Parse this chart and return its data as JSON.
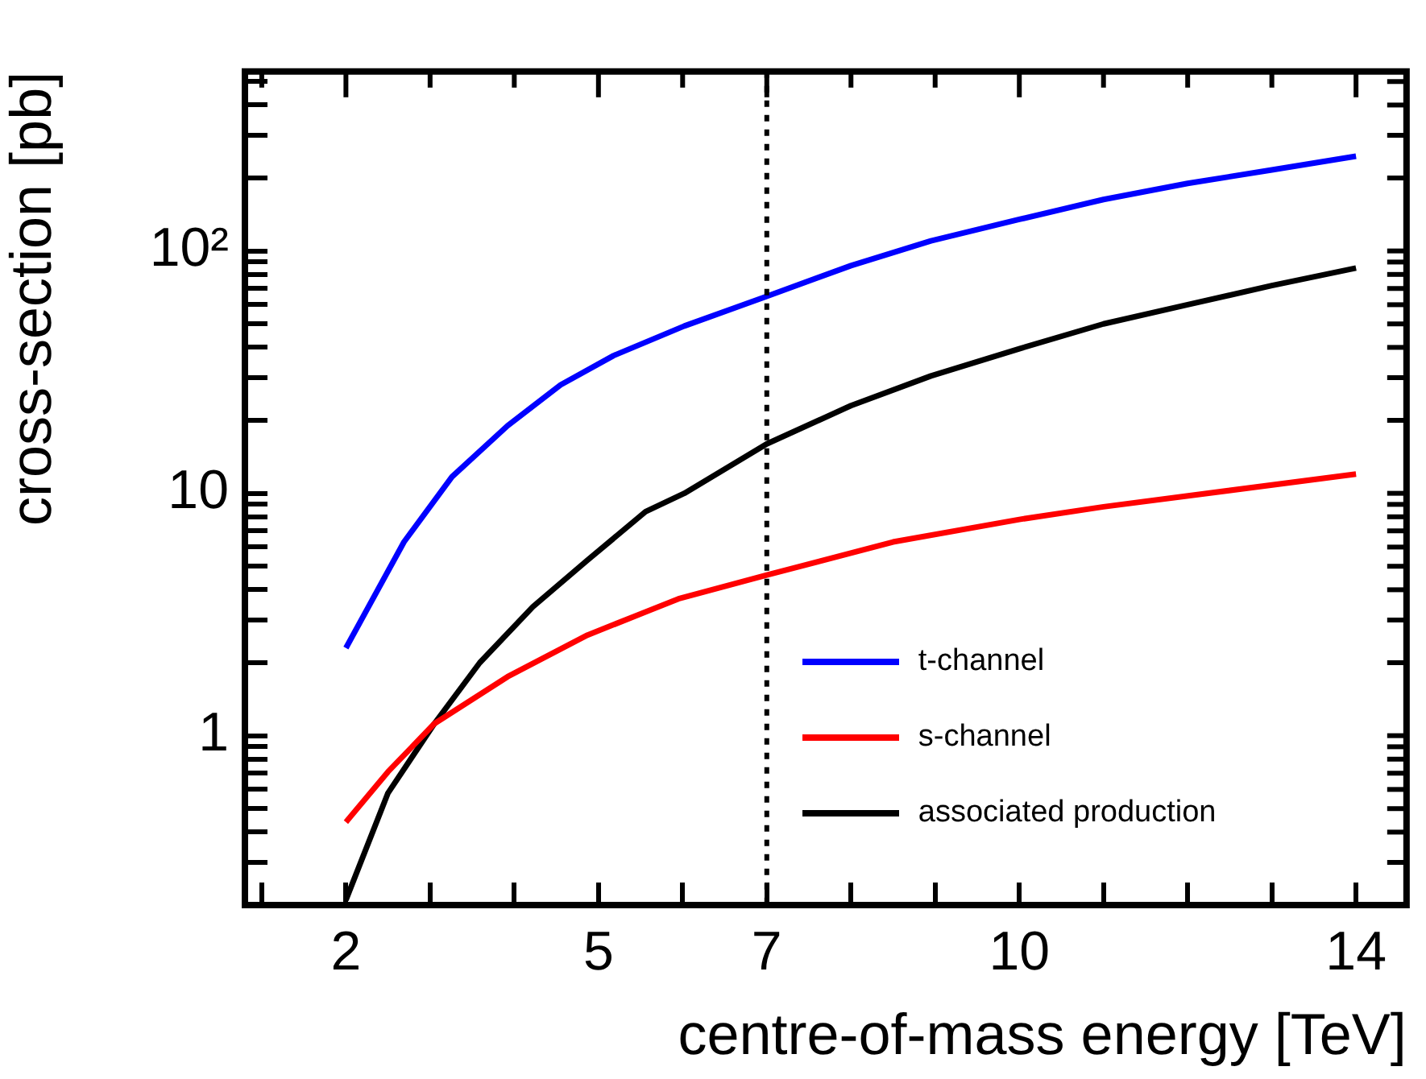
{
  "chart_data": {
    "type": "line",
    "xlabel": "centre-of-mass energy [TeV]",
    "ylabel": "cross-section [pb]",
    "log": "y",
    "legend": "bottom right",
    "marker": "none",
    "line_style": "solid",
    "xlim": [
      0.8,
      14.6
    ],
    "ylim": [
      0.2,
      550
    ],
    "xticks": [
      {
        "value": 1,
        "label": null
      },
      2,
      {
        "value": 3,
        "label": null
      },
      {
        "value": 4,
        "label": null
      },
      5,
      {
        "value": 6,
        "label": null
      },
      7,
      {
        "value": 8,
        "label": null
      },
      {
        "value": 9,
        "label": null
      },
      10,
      {
        "value": 11,
        "label": null
      },
      {
        "value": 12,
        "label": null
      },
      {
        "value": 13,
        "label": null
      },
      14
    ],
    "yticks": [
      {
        "value": 0.2,
        "label": null
      },
      {
        "value": 0.3,
        "label": null
      },
      {
        "value": 0.4,
        "label": null
      },
      {
        "value": 0.5,
        "label": null
      },
      {
        "value": 0.6,
        "label": null
      },
      {
        "value": 0.7,
        "label": null
      },
      {
        "value": 0.8,
        "label": null
      },
      {
        "value": 0.9,
        "label": null
      },
      1,
      {
        "value": 2,
        "label": null
      },
      {
        "value": 3,
        "label": null
      },
      {
        "value": 4,
        "label": null
      },
      {
        "value": 5,
        "label": null
      },
      {
        "value": 6,
        "label": null
      },
      {
        "value": 7,
        "label": null
      },
      {
        "value": 8,
        "label": null
      },
      {
        "value": 9,
        "label": null
      },
      10,
      {
        "value": 20,
        "label": null
      },
      {
        "value": 30,
        "label": null
      },
      {
        "value": 40,
        "label": null
      },
      {
        "value": 50,
        "label": null
      },
      {
        "value": 60,
        "label": null
      },
      {
        "value": 70,
        "label": null
      },
      {
        "value": 80,
        "label": null
      },
      {
        "value": 90,
        "label": null
      },
      {
        "value": 100,
        "label": "10²"
      },
      {
        "value": 200,
        "label": null
      },
      {
        "value": 300,
        "label": null
      },
      {
        "value": 400,
        "label": null
      },
      {
        "value": 500,
        "label": null
      }
    ],
    "ref_lines": [
      {
        "axis": "x",
        "value": 7,
        "color": "#000000",
        "line_style": "dotted"
      }
    ],
    "series": [
      {
        "name": "t-channel",
        "color": "#0000ff",
        "x": [
          2,
          2.69,
          3.26,
          3.92,
          4.55,
          5.18,
          6.02,
          7,
          8,
          8.95,
          10,
          11,
          12,
          13,
          14
        ],
        "values": [
          2.3,
          6.3,
          11.7,
          19,
          28,
          37,
          49,
          65,
          87,
          110,
          135,
          163,
          190,
          216,
          246
        ]
      },
      {
        "name": "s-channel",
        "color": "#ff0000",
        "x": [
          2,
          2.5,
          3.05,
          3.92,
          4.87,
          5.95,
          7,
          8.5,
          10,
          11,
          14
        ],
        "values": [
          0.44,
          0.71,
          1.12,
          1.75,
          2.6,
          3.67,
          4.6,
          6.3,
          7.8,
          8.8,
          12
        ]
      },
      {
        "name": "associated production",
        "color": "#000000",
        "x": [
          2,
          2.5,
          3.05,
          3.59,
          4.22,
          4.87,
          5.56,
          6.02,
          7,
          8,
          8.95,
          10,
          11,
          12,
          13,
          14
        ],
        "values": [
          0.21,
          0.58,
          1.12,
          2,
          3.4,
          5.3,
          8.4,
          10,
          16,
          23,
          30.5,
          39.5,
          50,
          60,
          72,
          85
        ]
      }
    ]
  }
}
